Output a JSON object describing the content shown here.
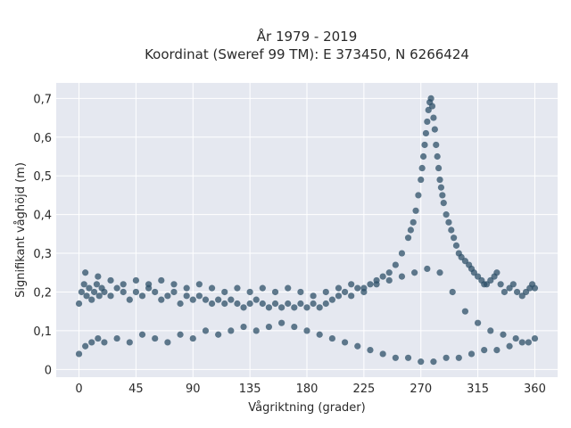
{
  "chart_data": {
    "type": "scatter",
    "title": "År 1979 - 2019",
    "subtitle": "Koordinat (Sweref 99 TM): E 373450, N 6266424",
    "xlabel": "Vågriktning (grader)",
    "ylabel": "Signifikant våghöjd (m)",
    "xlim": [
      -18,
      378
    ],
    "ylim": [
      -0.02,
      0.74
    ],
    "x_ticks": [
      0,
      45,
      90,
      135,
      180,
      225,
      270,
      315,
      360
    ],
    "x_tick_labels": [
      "0",
      "45",
      "90",
      "135",
      "180",
      "225",
      "270",
      "315",
      "360"
    ],
    "y_ticks": [
      0,
      0.1,
      0.2,
      0.3,
      0.4,
      0.5,
      0.6,
      0.7
    ],
    "y_tick_labels": [
      "0",
      "0,1",
      "0,2",
      "0,3",
      "0,4",
      "0,5",
      "0,6",
      "0,7"
    ],
    "grid": true,
    "legend": "none",
    "marker_color": "#2e5068",
    "background_color": "#e5e8f0",
    "series": [
      {
        "x": [
          0,
          2,
          4,
          6,
          8,
          10,
          12,
          14,
          16,
          18,
          20,
          25,
          30,
          35,
          40,
          45,
          50,
          55,
          60,
          65,
          70,
          75,
          80,
          85,
          90,
          95,
          100,
          105,
          110,
          115,
          120,
          125,
          130,
          135,
          140,
          145,
          150,
          155,
          160,
          165,
          170,
          175,
          180,
          185,
          190,
          195,
          200,
          205,
          210,
          215,
          220,
          225,
          230,
          235,
          240,
          245,
          250,
          255,
          260,
          262,
          264,
          266,
          268,
          270,
          271,
          272,
          273,
          274,
          275,
          276,
          277,
          278,
          279,
          280,
          281,
          282,
          283,
          284,
          285,
          286,
          287,
          288,
          290,
          292,
          294,
          296,
          298,
          300,
          302,
          305,
          308,
          310,
          312,
          315,
          318,
          320,
          322,
          325,
          328,
          330,
          333,
          336,
          340,
          343,
          346,
          350,
          353,
          356,
          358,
          360,
          0,
          5,
          10,
          15,
          20,
          30,
          40,
          50,
          60,
          70,
          80,
          90,
          100,
          110,
          120,
          130,
          140,
          150,
          160,
          170,
          180,
          190,
          200,
          210,
          220,
          230,
          240,
          250,
          260,
          270,
          280,
          290,
          300,
          310,
          320,
          330,
          340,
          350,
          360,
          5,
          15,
          25,
          35,
          45,
          55,
          65,
          75,
          85,
          95,
          105,
          115,
          125,
          135,
          145,
          155,
          165,
          175,
          185,
          195,
          205,
          215,
          225,
          235,
          245,
          255,
          265,
          275,
          285,
          295,
          305,
          315,
          325,
          335,
          345,
          355
        ],
        "y": [
          0.17,
          0.2,
          0.22,
          0.19,
          0.21,
          0.18,
          0.2,
          0.22,
          0.19,
          0.21,
          0.2,
          0.19,
          0.21,
          0.2,
          0.18,
          0.2,
          0.19,
          0.21,
          0.2,
          0.18,
          0.19,
          0.2,
          0.17,
          0.19,
          0.18,
          0.19,
          0.18,
          0.17,
          0.18,
          0.17,
          0.18,
          0.17,
          0.16,
          0.17,
          0.18,
          0.17,
          0.16,
          0.17,
          0.16,
          0.17,
          0.16,
          0.17,
          0.16,
          0.17,
          0.16,
          0.17,
          0.18,
          0.19,
          0.2,
          0.19,
          0.21,
          0.2,
          0.22,
          0.23,
          0.24,
          0.25,
          0.27,
          0.3,
          0.34,
          0.36,
          0.38,
          0.41,
          0.45,
          0.49,
          0.52,
          0.55,
          0.58,
          0.61,
          0.64,
          0.67,
          0.69,
          0.7,
          0.68,
          0.65,
          0.62,
          0.58,
          0.55,
          0.52,
          0.49,
          0.47,
          0.45,
          0.43,
          0.4,
          0.38,
          0.36,
          0.34,
          0.32,
          0.3,
          0.29,
          0.28,
          0.27,
          0.26,
          0.25,
          0.24,
          0.23,
          0.22,
          0.22,
          0.23,
          0.24,
          0.25,
          0.22,
          0.2,
          0.21,
          0.22,
          0.2,
          0.19,
          0.2,
          0.21,
          0.22,
          0.21,
          0.04,
          0.06,
          0.07,
          0.08,
          0.07,
          0.08,
          0.07,
          0.09,
          0.08,
          0.07,
          0.09,
          0.08,
          0.1,
          0.09,
          0.1,
          0.11,
          0.1,
          0.11,
          0.12,
          0.11,
          0.1,
          0.09,
          0.08,
          0.07,
          0.06,
          0.05,
          0.04,
          0.03,
          0.03,
          0.02,
          0.02,
          0.03,
          0.03,
          0.04,
          0.05,
          0.05,
          0.06,
          0.07,
          0.08,
          0.25,
          0.24,
          0.23,
          0.22,
          0.23,
          0.22,
          0.23,
          0.22,
          0.21,
          0.22,
          0.21,
          0.2,
          0.21,
          0.2,
          0.21,
          0.2,
          0.21,
          0.2,
          0.19,
          0.2,
          0.21,
          0.22,
          0.21,
          0.22,
          0.23,
          0.24,
          0.25,
          0.26,
          0.25,
          0.2,
          0.15,
          0.12,
          0.1,
          0.09,
          0.08,
          0.07
        ]
      }
    ]
  }
}
